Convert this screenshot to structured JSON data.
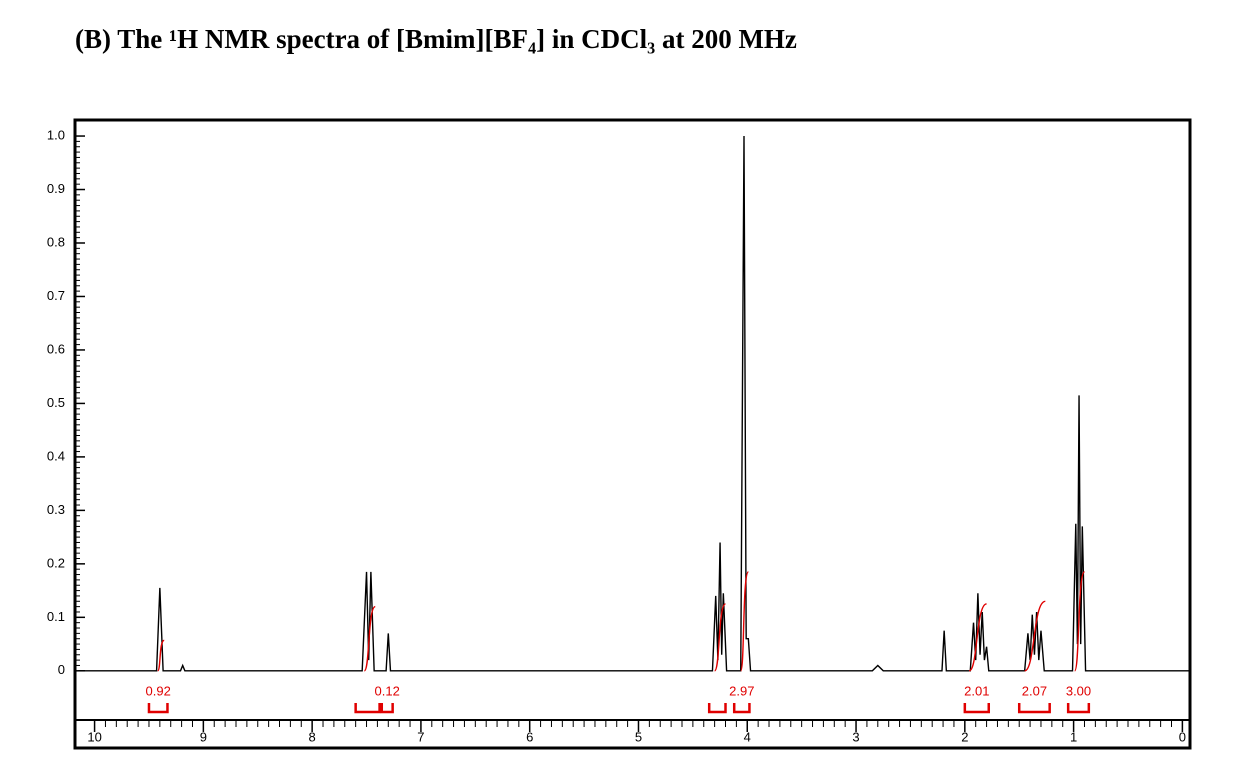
{
  "chart_data": {
    "type": "nmr",
    "title": "(B) The ¹H NMR spectra of [Bmim][BF₄] in CDCl₃ at 200 MHz",
    "x": [
      10.15,
      9.43,
      9.4,
      9.37,
      9.21,
      9.19,
      9.17,
      7.54,
      7.5,
      7.48,
      7.46,
      7.43,
      7.32,
      7.3,
      7.28,
      4.32,
      4.29,
      4.27,
      4.25,
      4.235,
      4.22,
      4.19,
      4.06,
      4.03,
      4.01,
      3.99,
      3.97,
      2.85,
      2.8,
      2.75,
      2.21,
      2.19,
      2.17,
      1.95,
      1.92,
      1.9,
      1.88,
      1.86,
      1.84,
      1.82,
      1.8,
      1.78,
      1.45,
      1.42,
      1.4,
      1.38,
      1.36,
      1.34,
      1.32,
      1.3,
      1.27,
      1.01,
      0.98,
      0.965,
      0.95,
      0.935,
      0.92,
      0.89,
      -0.06
    ],
    "series": [
      {
        "color": "#000000",
        "values": [
          0,
          0,
          0.155,
          0,
          0,
          0.01,
          0,
          0,
          0.185,
          0.02,
          0.185,
          0,
          0,
          0.07,
          0,
          0,
          0.14,
          0.02,
          0.24,
          0.03,
          0.145,
          0,
          0,
          1.0,
          0.06,
          0.06,
          0,
          0,
          0.01,
          0,
          0,
          0.075,
          0,
          0,
          0.09,
          0.02,
          0.145,
          0.03,
          0.11,
          0.02,
          0.045,
          0,
          0,
          0.07,
          0.02,
          0.105,
          0.03,
          0.11,
          0.02,
          0.075,
          0,
          0,
          0.275,
          0.05,
          0.515,
          0.05,
          0.27,
          0,
          0
        ]
      }
    ],
    "integral_color": "#e00000",
    "integral_curves": [
      {
        "x": [
          9.42,
          9.36
        ],
        "y": [
          0,
          0.057
        ]
      },
      {
        "x": [
          7.52,
          7.42
        ],
        "y": [
          0,
          0.12
        ]
      },
      {
        "x": [
          4.3,
          4.2
        ],
        "y": [
          0,
          0.125
        ]
      },
      {
        "x": [
          4.06,
          3.99
        ],
        "y": [
          0,
          0.185
        ]
      },
      {
        "x": [
          1.96,
          1.8
        ],
        "y": [
          0,
          0.125
        ]
      },
      {
        "x": [
          1.45,
          1.26
        ],
        "y": [
          0,
          0.13
        ]
      },
      {
        "x": [
          0.99,
          0.9
        ],
        "y": [
          0,
          0.185
        ]
      }
    ],
    "integrals": [
      {
        "label": "0.92",
        "ranges": [
          [
            9.5,
            9.33
          ]
        ]
      },
      {
        "label": "0.12",
        "ranges": [
          [
            7.6,
            7.38
          ],
          [
            7.36,
            7.26
          ]
        ]
      },
      {
        "label": "2.97",
        "ranges": [
          [
            4.35,
            4.2
          ],
          [
            4.12,
            3.98
          ]
        ]
      },
      {
        "label": "2.01",
        "ranges": [
          [
            2.0,
            1.78
          ]
        ]
      },
      {
        "label": "2.07",
        "ranges": [
          [
            1.5,
            1.22
          ]
        ]
      },
      {
        "label": "3.00",
        "ranges": [
          [
            1.05,
            0.86
          ]
        ]
      }
    ],
    "xlim": [
      10.18,
      -0.07
    ],
    "xticks": [
      10,
      9,
      8,
      7,
      6,
      5,
      4,
      3,
      2,
      1,
      0
    ],
    "ylim": [
      -0.092,
      1.03
    ],
    "yticks": [
      0,
      0.1,
      0.2,
      0.3,
      0.4,
      0.5,
      0.6,
      0.7,
      0.8,
      0.9,
      {
        "value": 1,
        "label": "1.0"
      }
    ]
  }
}
